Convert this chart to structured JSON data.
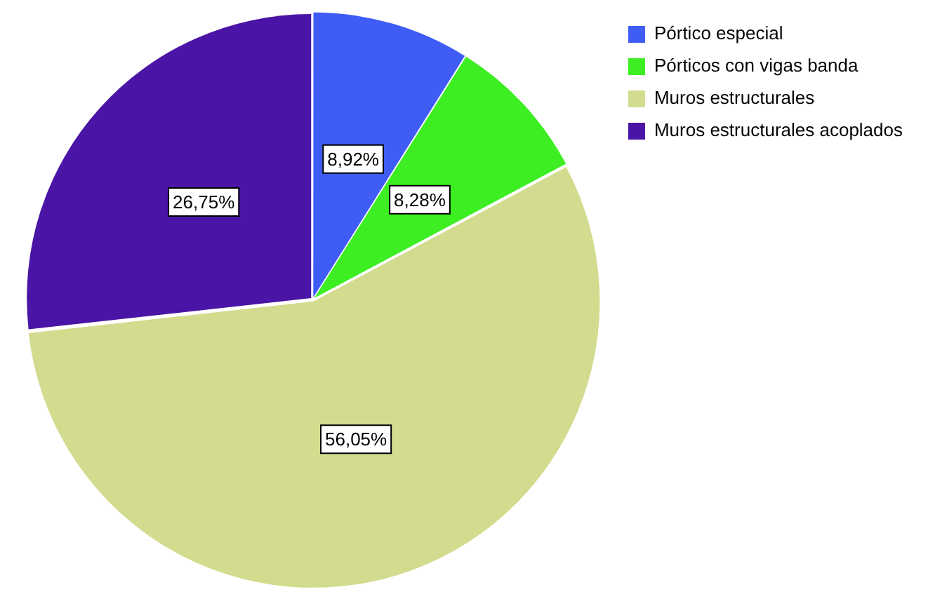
{
  "chart_data": {
    "type": "pie",
    "categories": [
      "Pórtico especial",
      "Pórticos con vigas banda",
      "Muros estructurales",
      "Muros estructurales acoplados"
    ],
    "values": [
      8.92,
      8.28,
      56.05,
      26.75
    ],
    "value_labels": [
      "8,92%",
      "8,28%",
      "56,05%",
      "26,75%"
    ],
    "colors": [
      "#3f5cf5",
      "#3cee22",
      "#d3db8e",
      "#4a15a6"
    ],
    "legend": "top right"
  }
}
